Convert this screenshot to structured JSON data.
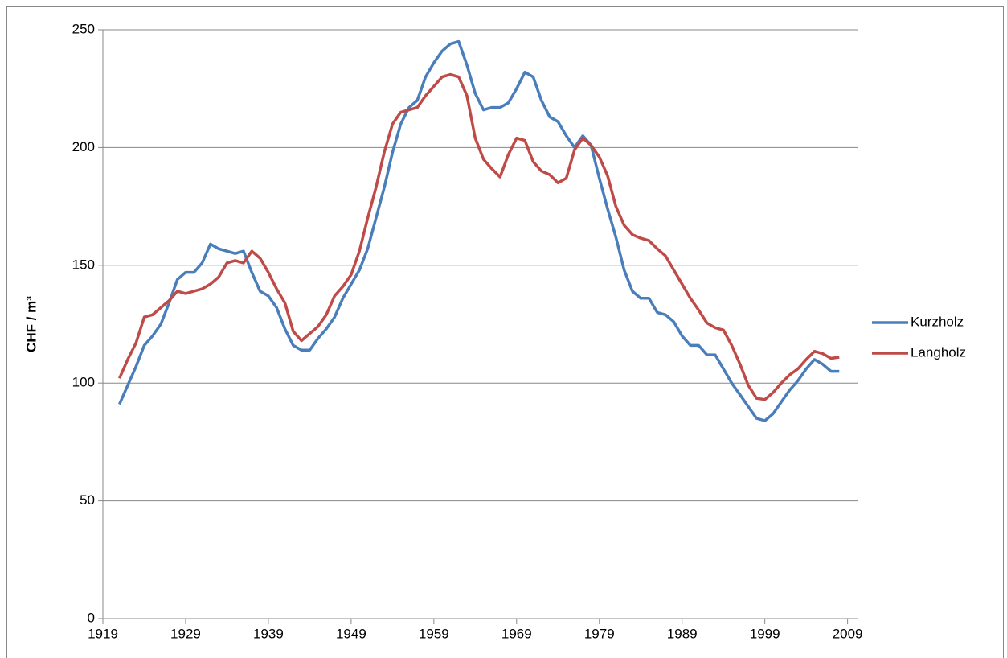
{
  "chart_data": {
    "type": "line",
    "y_label": "CHF / m³",
    "x": [
      1921,
      1922,
      1923,
      1924,
      1925,
      1926,
      1927,
      1928,
      1929,
      1930,
      1931,
      1932,
      1933,
      1934,
      1935,
      1936,
      1937,
      1938,
      1939,
      1940,
      1941,
      1942,
      1943,
      1944,
      1945,
      1946,
      1947,
      1948,
      1949,
      1950,
      1951,
      1952,
      1953,
      1954,
      1955,
      1956,
      1957,
      1958,
      1959,
      1960,
      1961,
      1962,
      1963,
      1964,
      1965,
      1966,
      1967,
      1968,
      1969,
      1970,
      1971,
      1972,
      1973,
      1974,
      1975,
      1976,
      1977,
      1978,
      1979,
      1980,
      1981,
      1982,
      1983,
      1984,
      1985,
      1986,
      1987,
      1988,
      1989,
      1990,
      1991,
      1992,
      1993,
      1994,
      1995,
      1996,
      1997,
      1998,
      1999,
      2000,
      2001,
      2002,
      2003,
      2004,
      2005,
      2006,
      2007,
      2008
    ],
    "series": [
      {
        "name": "Kurzholz",
        "color": "#4a7ebb",
        "values": [
          91,
          99,
          107,
          116,
          120,
          125,
          134,
          144,
          147,
          147,
          151,
          159,
          157,
          156,
          155,
          156,
          147,
          139,
          137,
          132,
          123,
          116,
          114,
          114,
          119,
          123,
          128,
          136,
          142,
          148,
          157,
          170,
          183,
          198,
          210,
          217,
          220,
          230,
          236,
          241,
          244,
          245,
          235,
          223,
          216,
          217,
          217,
          219,
          225,
          232,
          230,
          220,
          213,
          211,
          205,
          200,
          205,
          201,
          187,
          174,
          162,
          148,
          139,
          136,
          136,
          130,
          129,
          126,
          120,
          116,
          116,
          112,
          112,
          106,
          100,
          95,
          90,
          85,
          84,
          87,
          92,
          97,
          101,
          106,
          110,
          108,
          105,
          105
        ]
      },
      {
        "name": "Langholz",
        "color": "#be4b48",
        "values": [
          102,
          110,
          117,
          128,
          129,
          132,
          135,
          139,
          138,
          139,
          140,
          142,
          145,
          151,
          152,
          151,
          156,
          153,
          147,
          140,
          134,
          122,
          118,
          121,
          124,
          129,
          137,
          141,
          146,
          156,
          170,
          183,
          198,
          210,
          215,
          216,
          217,
          222,
          226,
          230,
          231,
          230,
          222,
          204,
          195,
          191,
          187.5,
          197,
          204,
          203,
          194,
          190,
          188.5,
          185,
          187,
          199,
          204,
          201,
          196,
          188,
          175,
          167,
          163,
          161.5,
          160.5,
          157,
          154,
          148,
          142,
          136,
          131,
          125.5,
          123.5,
          122.5,
          116,
          108,
          99,
          93.5,
          93,
          96,
          100,
          103.5,
          106,
          110,
          113.5,
          112.5,
          110.5,
          111
        ]
      }
    ],
    "xlim": [
      1919,
      2010.3
    ],
    "xticks": [
      1919,
      1929,
      1939,
      1949,
      1959,
      1969,
      1979,
      1989,
      1999,
      2009
    ],
    "ylim": [
      0,
      250
    ],
    "yticks": [
      0,
      50,
      100,
      150,
      200,
      250
    ],
    "grid": true,
    "legend": "right"
  }
}
